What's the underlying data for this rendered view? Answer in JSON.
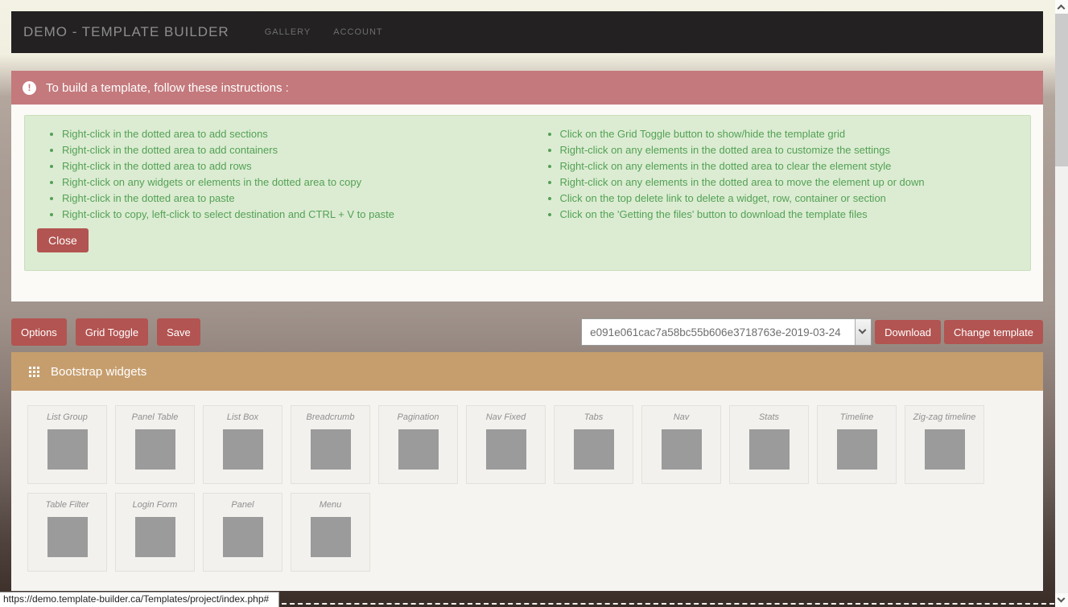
{
  "navbar": {
    "brand": "DEMO - TEMPLATE BUILDER",
    "links": [
      {
        "label": "GALLERY"
      },
      {
        "label": "ACCOUNT"
      }
    ]
  },
  "alert": {
    "icon_glyph": "!",
    "text": "To build a template, follow these instructions :"
  },
  "instructions": {
    "left": [
      "Right-click in the dotted area to add sections",
      "Right-click in the dotted area to add containers",
      "Right-click in the dotted area to add rows",
      "Right-click on any widgets or elements in the dotted area to copy",
      "Right-click in the dotted area to paste",
      "Right-click to copy, left-click to select destination and CTRL + V to paste"
    ],
    "right": [
      "Click on the Grid Toggle button to show/hide the template grid",
      "Right-click on any elements in the dotted area to customize the settings",
      "Right-click on any elements in the dotted area to clear the element style",
      "Right-click on any elements in the dotted area to move the element up or down",
      "Click on the top delete link to delete a widget, row, container or section",
      "Click on the 'Getting the files' button to download the template files"
    ],
    "close_label": "Close"
  },
  "toolbar": {
    "options": "Options",
    "grid_toggle": "Grid Toggle",
    "save": "Save",
    "template_select": "e091e061cac7a58bc55b606e3718763e-2019-03-24",
    "download": "Download",
    "change_template": "Change template"
  },
  "widgets": {
    "title": "Bootstrap widgets",
    "items": [
      {
        "label": "List Group"
      },
      {
        "label": "Panel Table"
      },
      {
        "label": "List Box"
      },
      {
        "label": "Breadcrumb"
      },
      {
        "label": "Pagination"
      },
      {
        "label": "Nav Fixed"
      },
      {
        "label": "Tabs"
      },
      {
        "label": "Nav"
      },
      {
        "label": "Stats"
      },
      {
        "label": "Timeline"
      },
      {
        "label": "Zig-zag timeline"
      },
      {
        "label": "Table Filter"
      },
      {
        "label": "Login Form"
      },
      {
        "label": "Panel"
      },
      {
        "label": "Menu"
      }
    ]
  },
  "status_bar": {
    "url": "https://demo.template-builder.ca/Templates/project/index.php#"
  },
  "colors": {
    "alert_bg": "#c4797c",
    "button_red": "#b25451",
    "widgets_header_bg": "#c69e6e",
    "instructions_bg": "#dcecd2",
    "instructions_text": "#53a156",
    "navbar_bg": "#232121",
    "page_cream": "#f3f2e4",
    "page_dark": "#392c27",
    "thumb_gray": "#9b9b9b"
  }
}
